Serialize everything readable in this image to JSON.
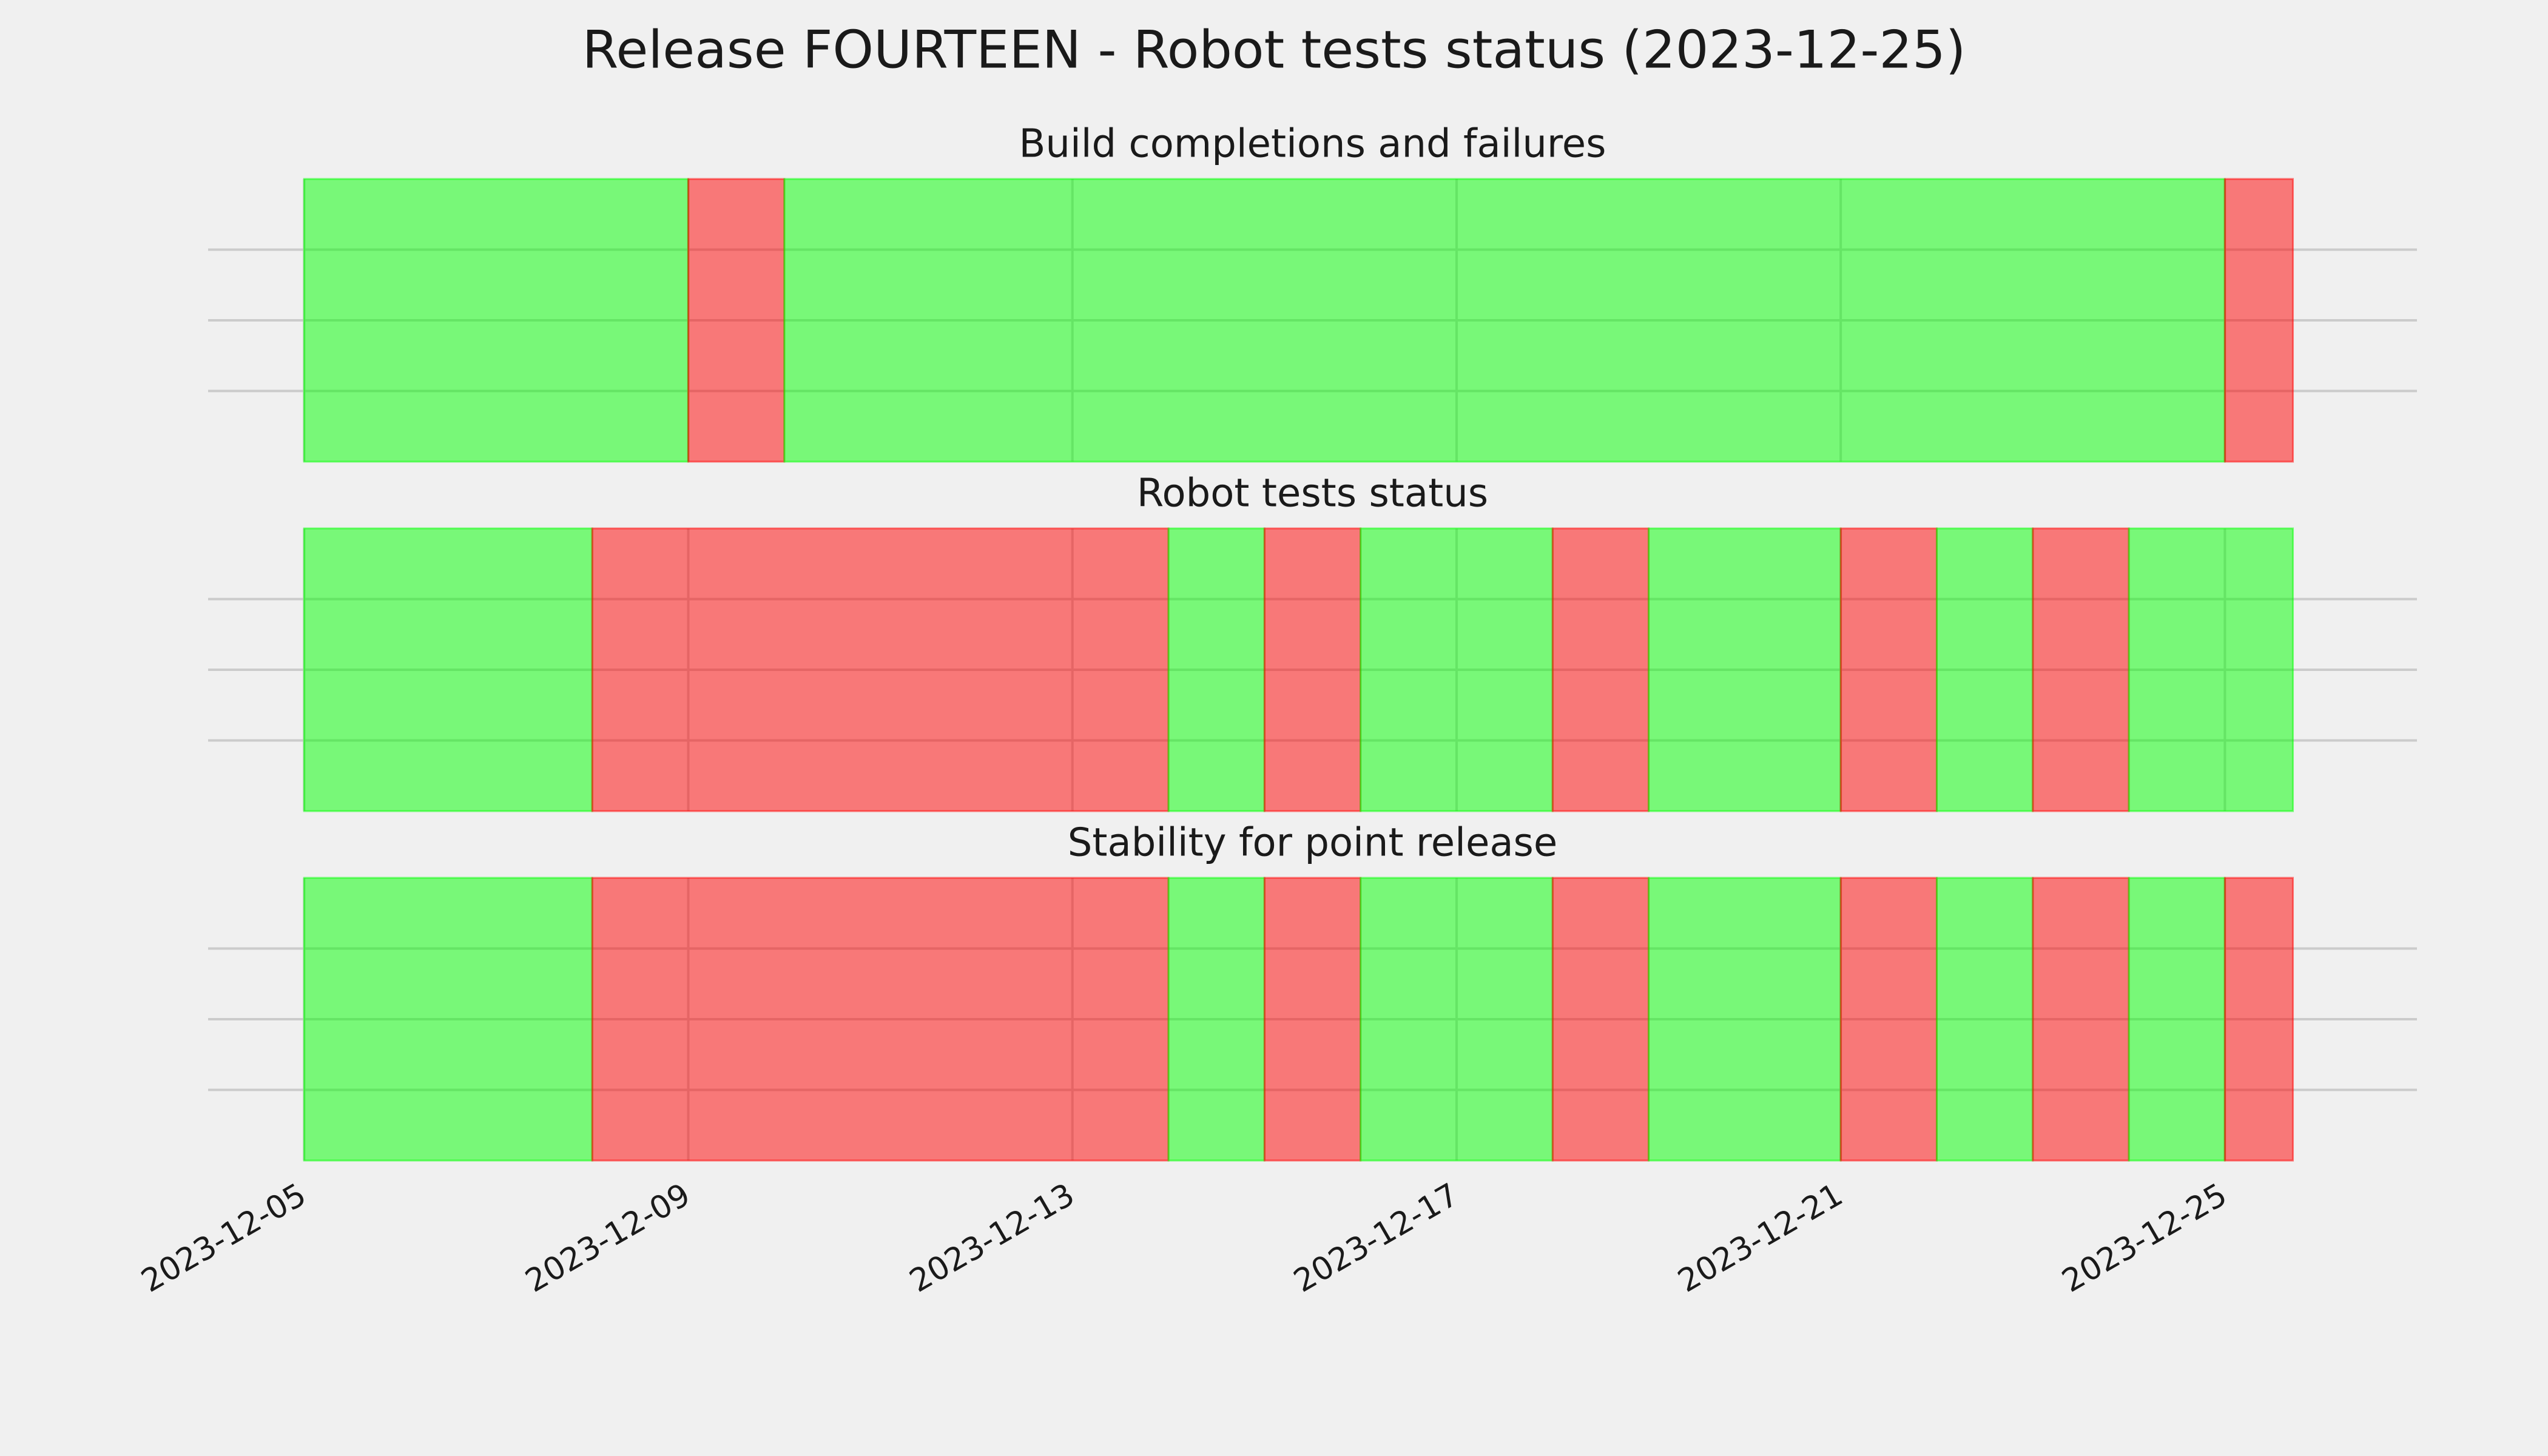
{
  "title": "Release FOURTEEN - Robot tests status (2023-12-25)",
  "chart_data": [
    {
      "type": "timeline",
      "title": "Build completions and failures",
      "x": [
        "2023-12-05",
        "2023-12-09",
        "2023-12-10",
        "2023-12-25",
        "2023-12-25T17:00"
      ],
      "colors": [
        "#00ff00",
        "#ff0000",
        "#00ff00",
        "#ff0000"
      ],
      "alpha": 0.5,
      "xlim": [
        "2023-12-04",
        "2023-12-27"
      ],
      "ylim": [
        0,
        1
      ],
      "yticks": [
        0.25,
        0.5,
        0.75
      ],
      "xticks": [
        "2023-12-05",
        "2023-12-09",
        "2023-12-13",
        "2023-12-17",
        "2023-12-21",
        "2023-12-25"
      ],
      "grid": true,
      "show_xtick_labels": false
    },
    {
      "type": "timeline",
      "title": "Robot tests status",
      "x": [
        "2023-12-05",
        "2023-12-08",
        "2023-12-14",
        "2023-12-15",
        "2023-12-16",
        "2023-12-18",
        "2023-12-19",
        "2023-12-21",
        "2023-12-22",
        "2023-12-23",
        "2023-12-24",
        "2023-12-25T17:00"
      ],
      "colors": [
        "#00ff00",
        "#ff0000",
        "#00ff00",
        "#ff0000",
        "#00ff00",
        "#ff0000",
        "#00ff00",
        "#ff0000",
        "#00ff00",
        "#ff0000",
        "#00ff00"
      ],
      "alpha": 0.5,
      "xlim": [
        "2023-12-04",
        "2023-12-27"
      ],
      "ylim": [
        0,
        1
      ],
      "yticks": [
        0.25,
        0.5,
        0.75
      ],
      "xticks": [
        "2023-12-05",
        "2023-12-09",
        "2023-12-13",
        "2023-12-17",
        "2023-12-21",
        "2023-12-25"
      ],
      "grid": true,
      "show_xtick_labels": false
    },
    {
      "type": "timeline",
      "title": "Stability for point release",
      "x": [
        "2023-12-05",
        "2023-12-08",
        "2023-12-14",
        "2023-12-15",
        "2023-12-16",
        "2023-12-18",
        "2023-12-19",
        "2023-12-21",
        "2023-12-22",
        "2023-12-23",
        "2023-12-24",
        "2023-12-25",
        "2023-12-25T17:00"
      ],
      "colors": [
        "#00ff00",
        "#ff0000",
        "#00ff00",
        "#ff0000",
        "#00ff00",
        "#ff0000",
        "#00ff00",
        "#ff0000",
        "#00ff00",
        "#ff0000",
        "#00ff00",
        "#ff0000"
      ],
      "alpha": 0.5,
      "xlim": [
        "2023-12-04",
        "2023-12-27"
      ],
      "ylim": [
        0,
        1
      ],
      "yticks": [
        0.25,
        0.5,
        0.75
      ],
      "xticks": [
        "2023-12-05",
        "2023-12-09",
        "2023-12-13",
        "2023-12-17",
        "2023-12-21",
        "2023-12-25"
      ],
      "grid": true,
      "show_xtick_labels": true
    }
  ]
}
